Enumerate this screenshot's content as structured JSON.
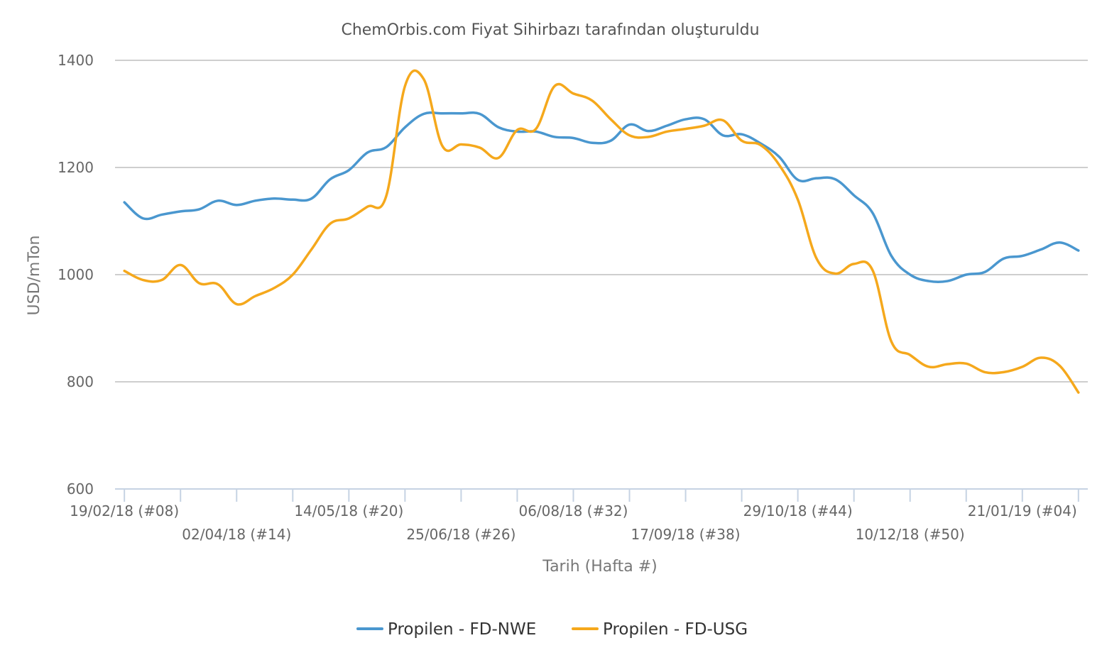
{
  "chart_data": {
    "type": "line",
    "title": "ChemOrbis.com Fiyat Sihirbazı tarafından oluşturuldu",
    "xlabel": "Tarih (Hafta #)",
    "ylabel": "USD/mTon",
    "ylim": [
      600,
      1400
    ],
    "yticks": [
      600,
      800,
      1000,
      1200,
      1400
    ],
    "grid": true,
    "legend_position": "bottom",
    "x_tick_labels": [
      {
        "week": 0,
        "label": "19/02/18 (#08)",
        "row": 1
      },
      {
        "week": 6,
        "label": "02/04/18 (#14)",
        "row": 2
      },
      {
        "week": 12,
        "label": "14/05/18 (#20)",
        "row": 1
      },
      {
        "week": 18,
        "label": "25/06/18 (#26)",
        "row": 2
      },
      {
        "week": 24,
        "label": "06/08/18 (#32)",
        "row": 1
      },
      {
        "week": 30,
        "label": "17/09/18 (#38)",
        "row": 2
      },
      {
        "week": 36,
        "label": "29/10/18 (#44)",
        "row": 1
      },
      {
        "week": 42,
        "label": "10/12/18 (#50)",
        "row": 2
      },
      {
        "week": 48,
        "label": "21/01/19 (#04)",
        "row": 1
      }
    ],
    "x_minor_ticks": [
      0,
      3,
      6,
      9,
      12,
      15,
      18,
      21,
      24,
      27,
      30,
      33,
      36,
      39,
      42,
      45,
      48,
      51
    ],
    "x_range": [
      -0.5,
      51.5
    ],
    "series": [
      {
        "name": "Propilen - FD-NWE",
        "color": "#4a97cf",
        "x": [
          0,
          1,
          2,
          3,
          4,
          5,
          6,
          7,
          8,
          9,
          10,
          11,
          12,
          13,
          14,
          15,
          16,
          17,
          18,
          19,
          20,
          21,
          22,
          23,
          24,
          25,
          26,
          27,
          28,
          29,
          30,
          31,
          32,
          33,
          34,
          35,
          36,
          37,
          38,
          39,
          40,
          41,
          42,
          43,
          44,
          45,
          46,
          47,
          48,
          49,
          50,
          51
        ],
        "values": [
          1135,
          1105,
          1112,
          1118,
          1122,
          1138,
          1130,
          1138,
          1142,
          1140,
          1142,
          1178,
          1195,
          1228,
          1238,
          1275,
          1300,
          1301,
          1301,
          1300,
          1275,
          1267,
          1267,
          1257,
          1255,
          1246,
          1250,
          1280,
          1268,
          1278,
          1290,
          1290,
          1260,
          1262,
          1245,
          1220,
          1177,
          1180,
          1178,
          1148,
          1115,
          1035,
          1000,
          988,
          988,
          1000,
          1005,
          1030,
          1035,
          1047,
          1060,
          1045
        ]
      },
      {
        "name": "Propilen - FD-USG",
        "color": "#f5a81c",
        "x": [
          0,
          1,
          2,
          3,
          4,
          5,
          6,
          7,
          8,
          9,
          10,
          11,
          12,
          13,
          14,
          15,
          16,
          17,
          18,
          19,
          20,
          21,
          22,
          23,
          24,
          25,
          26,
          27,
          28,
          29,
          30,
          31,
          32,
          33,
          34,
          35,
          36,
          37,
          38,
          39,
          40,
          41,
          42,
          43,
          44,
          45,
          46,
          47,
          48,
          49,
          50,
          51
        ],
        "values": [
          1007,
          990,
          990,
          1018,
          984,
          982,
          945,
          960,
          975,
          1000,
          1047,
          1095,
          1105,
          1127,
          1147,
          1352,
          1365,
          1240,
          1243,
          1237,
          1218,
          1270,
          1272,
          1352,
          1338,
          1325,
          1290,
          1260,
          1257,
          1267,
          1272,
          1278,
          1288,
          1250,
          1242,
          1205,
          1140,
          1030,
          1002,
          1020,
          1008,
          875,
          850,
          828,
          833,
          834,
          818,
          818,
          828,
          845,
          830,
          780
        ]
      }
    ]
  }
}
